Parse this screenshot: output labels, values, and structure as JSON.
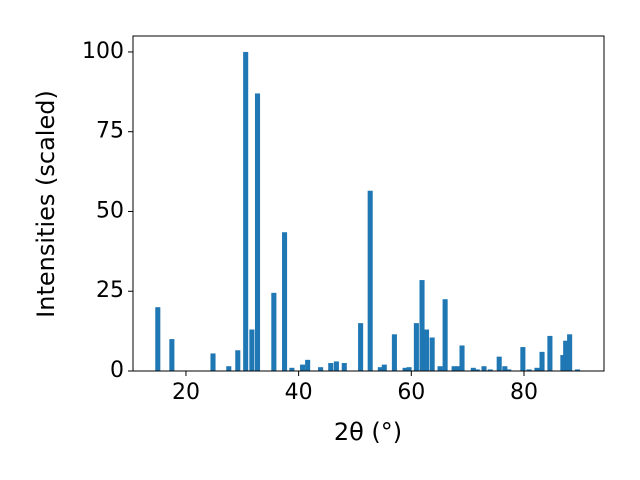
{
  "chart_data": {
    "type": "bar",
    "x_label": "2θ (°)",
    "y_label": "Intensities (scaled)",
    "x": [
      15.0,
      17.5,
      24.8,
      27.6,
      29.2,
      30.6,
      31.7,
      32.7,
      35.6,
      37.5,
      38.8,
      40.7,
      41.6,
      43.9,
      45.7,
      46.7,
      48.1,
      51.0,
      52.7,
      54.5,
      55.2,
      57.0,
      58.9,
      59.6,
      60.9,
      61.9,
      62.7,
      63.7,
      65.1,
      66.0,
      67.6,
      68.3,
      69.0,
      71.0,
      71.7,
      72.9,
      74.0,
      75.6,
      76.6,
      77.3,
      79.8,
      80.9,
      82.3,
      83.2,
      84.6,
      86.9,
      87.4,
      88.1,
      89.5
    ],
    "values": [
      20,
      10,
      5.5,
      1.5,
      6.5,
      100,
      13,
      87,
      24.5,
      43.5,
      1,
      2,
      3.5,
      1.2,
      2.5,
      3,
      2.5,
      15,
      56.5,
      1.2,
      2,
      11.5,
      1,
      1.2,
      15,
      28.5,
      13,
      10.5,
      1.5,
      22.5,
      1.5,
      1.5,
      8,
      1,
      0.5,
      1.5,
      0.5,
      4.5,
      1.5,
      0.5,
      7.5,
      0.5,
      1,
      6,
      11,
      5,
      9.5,
      11.5,
      0.5
    ],
    "color": "#1f77b4",
    "xlim": [
      10.6,
      94.2
    ],
    "xticks": [
      20,
      40,
      60,
      80
    ],
    "ylim": [
      0,
      105
    ],
    "yticks": [
      0,
      25,
      50,
      75,
      100
    ],
    "grid": false
  }
}
